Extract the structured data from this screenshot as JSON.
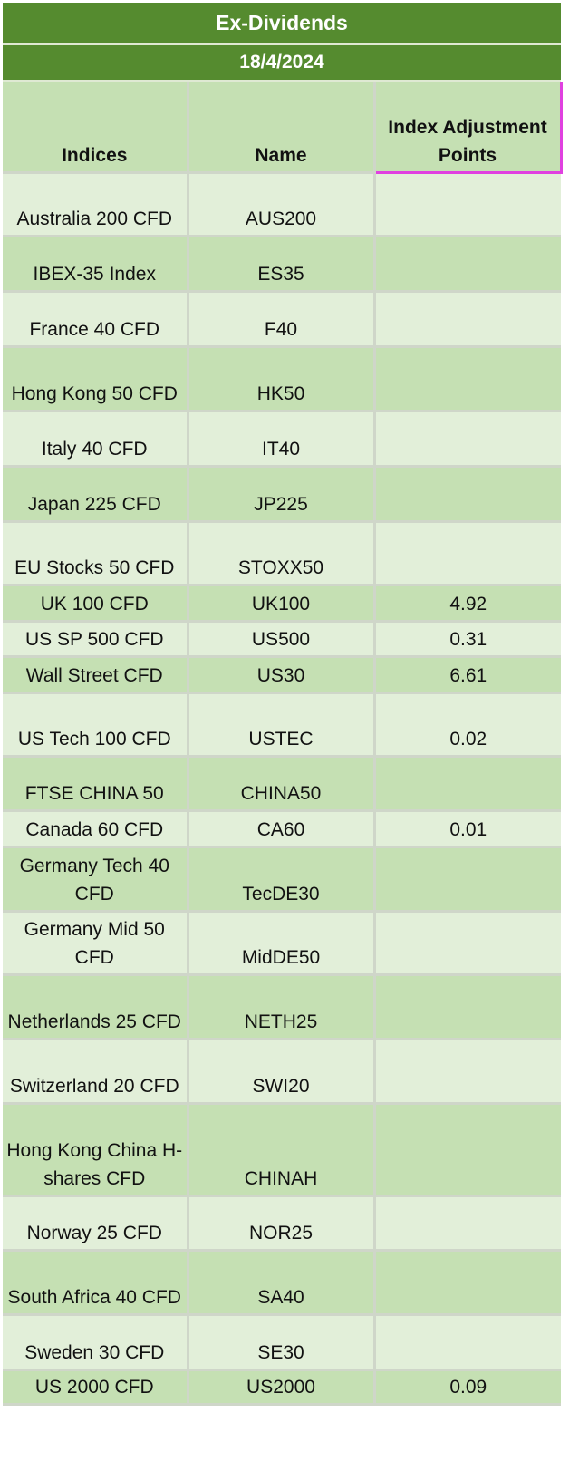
{
  "title": "Ex-Dividends",
  "date": "18/4/2024",
  "columns": [
    "Indices",
    "Name",
    "Index Adjustment Points"
  ],
  "rows": [
    {
      "index": "Australia 200 CFD",
      "name": "AUS200",
      "points": "",
      "h": 70
    },
    {
      "index": "IBEX-35 Index",
      "name": "ES35",
      "points": "",
      "h": 61
    },
    {
      "index": "France 40 CFD",
      "name": "F40",
      "points": "",
      "h": 61
    },
    {
      "index": "Hong Kong 50 CFD",
      "name": "HK50",
      "points": "",
      "h": 71
    },
    {
      "index": "Italy 40 CFD",
      "name": "IT40",
      "points": "",
      "h": 61
    },
    {
      "index": "Japan 225 CFD",
      "name": "JP225",
      "points": "",
      "h": 61
    },
    {
      "index": "EU Stocks 50 CFD",
      "name": "STOXX50",
      "points": "",
      "h": 70
    },
    {
      "index": "UK 100 CFD",
      "name": "UK100",
      "points": "4.92",
      "h": 40
    },
    {
      "index": "US SP 500 CFD",
      "name": "US500",
      "points": "0.31",
      "h": 39
    },
    {
      "index": "Wall Street CFD",
      "name": "US30",
      "points": "6.61",
      "h": 40
    },
    {
      "index": "US Tech 100 CFD",
      "name": "USTEC",
      "points": "0.02",
      "h": 70
    },
    {
      "index": "FTSE CHINA 50",
      "name": "CHINA50",
      "points": "",
      "h": 60
    },
    {
      "index": "Canada 60 CFD",
      "name": "CA60",
      "points": "0.01",
      "h": 40
    },
    {
      "index": "Germany Tech 40 CFD",
      "name": "TecDE30",
      "points": "",
      "h": 71
    },
    {
      "index": "Germany Mid 50 CFD",
      "name": "MidDE50",
      "points": "",
      "h": 70
    },
    {
      "index": "Netherlands 25 CFD",
      "name": "NETH25",
      "points": "",
      "h": 71
    },
    {
      "index": "Switzerland 20 CFD",
      "name": "SWI20",
      "points": "",
      "h": 71
    },
    {
      "index": "Hong Kong China H-shares CFD",
      "name": "CHINAH",
      "points": "",
      "h": 102
    },
    {
      "index": "Norway 25 CFD",
      "name": "NOR25",
      "points": "",
      "h": 60
    },
    {
      "index": "South Africa 40 CFD",
      "name": "SA40",
      "points": "",
      "h": 71
    },
    {
      "index": "Sweden 30 CFD",
      "name": "SE30",
      "points": "",
      "h": 61
    },
    {
      "index": "US 2000 CFD",
      "name": "US2000",
      "points": "0.09",
      "h": 38
    }
  ]
}
